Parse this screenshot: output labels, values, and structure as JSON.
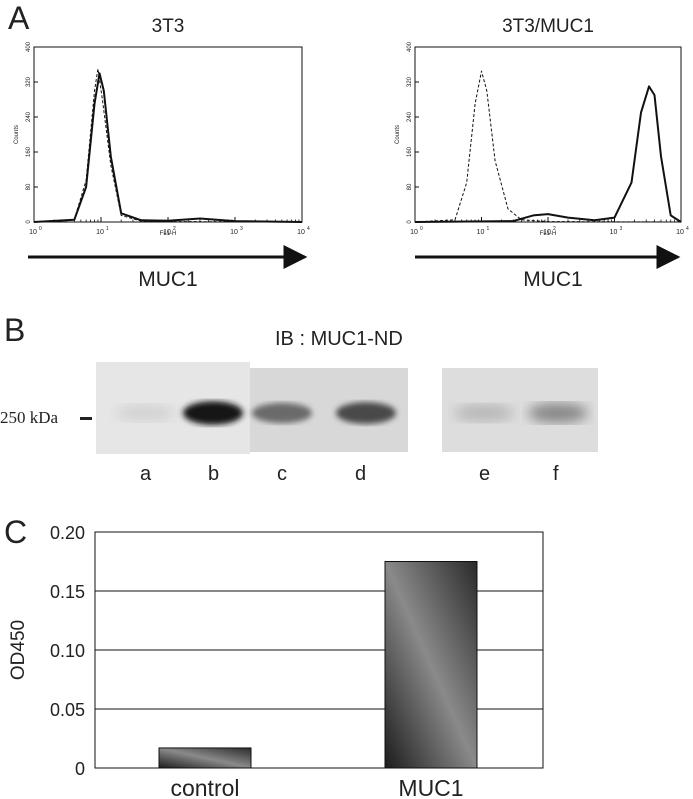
{
  "panels": {
    "a": "A",
    "b": "B",
    "c": "C"
  },
  "flow": {
    "left_title": "3T3",
    "right_title": "3T3/MUC1",
    "arrow_label": "MUC1",
    "ylabel": "Counts",
    "xlabel": "FL1-H",
    "yticks": [
      "0",
      "80",
      "160",
      "240",
      "320",
      "400"
    ],
    "xticks": [
      {
        "base": "10",
        "exp": "0"
      },
      {
        "base": "10",
        "exp": "1"
      },
      {
        "base": "10",
        "exp": "2"
      },
      {
        "base": "10",
        "exp": "3"
      },
      {
        "base": "10",
        "exp": "4"
      }
    ]
  },
  "blot": {
    "title": "IB : MUC1-ND",
    "marker": "250 kDa",
    "lanes": [
      "a",
      "b",
      "c",
      "d",
      "e",
      "f"
    ],
    "intensities": [
      0.05,
      0.95,
      0.55,
      0.72,
      0.18,
      0.42
    ]
  },
  "chart_data": [
    {
      "type": "line",
      "title": "3T3",
      "xlabel": "FL1-H",
      "ylabel": "Counts",
      "x_scale": "log",
      "xlim": [
        1,
        10000
      ],
      "ylim": [
        0,
        400
      ],
      "series": [
        {
          "style": "solid",
          "x": [
            1,
            4,
            6,
            8,
            9.5,
            11,
            14,
            20,
            40,
            100,
            300,
            1000,
            10000
          ],
          "y": [
            0,
            5,
            80,
            270,
            340,
            300,
            150,
            20,
            4,
            3,
            8,
            2,
            0
          ]
        },
        {
          "style": "dashed",
          "x": [
            1,
            4,
            6,
            8,
            9,
            10.5,
            14,
            20,
            40,
            100,
            10000
          ],
          "y": [
            0,
            6,
            95,
            300,
            350,
            280,
            130,
            15,
            2,
            1,
            0
          ]
        }
      ]
    },
    {
      "type": "line",
      "title": "3T3/MUC1",
      "xlabel": "FL1-H",
      "ylabel": "Counts",
      "x_scale": "log",
      "xlim": [
        1,
        10000
      ],
      "ylim": [
        0,
        400
      ],
      "series": [
        {
          "style": "solid",
          "x": [
            1,
            30,
            60,
            100,
            200,
            500,
            1000,
            1800,
            2500,
            3300,
            4000,
            5000,
            7000,
            10000
          ],
          "y": [
            0,
            2,
            15,
            18,
            10,
            4,
            10,
            90,
            250,
            310,
            290,
            150,
            15,
            0
          ]
        },
        {
          "style": "dashed",
          "x": [
            1,
            4,
            6,
            8,
            10,
            12,
            16,
            25,
            40,
            100,
            10000
          ],
          "y": [
            0,
            5,
            90,
            270,
            345,
            300,
            140,
            30,
            5,
            1,
            0
          ]
        }
      ]
    },
    {
      "type": "bar",
      "categories": [
        "control",
        "MUC1"
      ],
      "values": [
        0.017,
        0.175
      ],
      "ylabel": "OD450",
      "ylim": [
        0,
        0.2
      ],
      "yticks": [
        "0",
        "0.05",
        "0.10",
        "0.15",
        "0.20"
      ],
      "grid": true
    }
  ]
}
